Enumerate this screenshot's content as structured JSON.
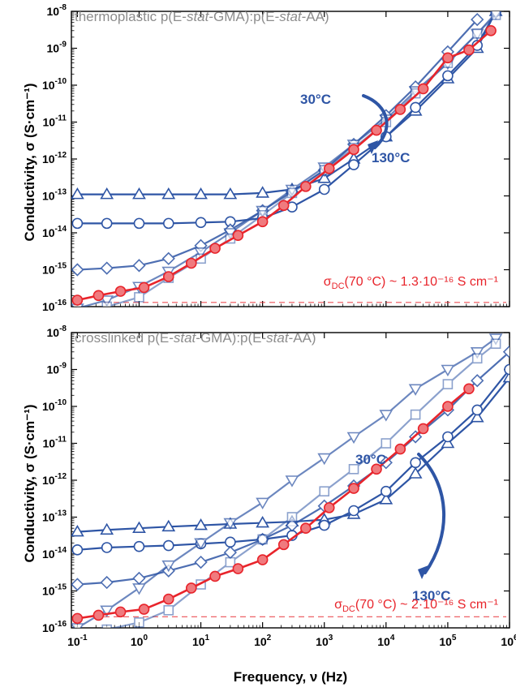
{
  "figure": {
    "xlabel": "Frequency, ν (Hz)",
    "ylabel": "Conductivity, σ (S·cm⁻¹)"
  },
  "chart_data": [
    {
      "type": "line",
      "title": "thermoplastic p(E-stat-GMA):p(E-stat-AA)",
      "title_parts": {
        "pre": "thermoplastic p(E-",
        "italic1": "stat",
        "mid": "-GMA):p(E-",
        "italic2": "stat",
        "post": "-AA)"
      },
      "xlabel": "Frequency, ν (Hz)",
      "ylabel": "Conductivity, σ (S·cm⁻¹)",
      "xscale": "log",
      "yscale": "log",
      "xlim": [
        0.08,
        1000000
      ],
      "ylim": [
        1e-16,
        1e-08
      ],
      "x_ticks": [
        "10⁻¹",
        "10⁰",
        "10¹",
        "10²",
        "10³",
        "10⁴",
        "10⁵",
        "10⁶"
      ],
      "y_ticks": [
        "10⁻⁸",
        "10⁻⁹",
        "10⁻¹⁰",
        "10⁻¹¹",
        "10⁻¹²",
        "10⁻¹³",
        "10⁻¹⁴",
        "10⁻¹⁵",
        "10⁻¹⁶"
      ],
      "annotations": {
        "hot": "130°C",
        "cold": "30°C"
      },
      "dc_label": {
        "prefix": "σ",
        "sub": "DC",
        "text": "(70 °C) ~ 1.3·10⁻¹⁶ S cm⁻¹",
        "value": 1.3e-16
      },
      "colors": {
        "series": "#2e55a5",
        "highlight": "#e8242b"
      },
      "series": [
        {
          "marker": "triangle-up",
          "alpha": 1.0,
          "x": [
            0.1,
            0.3,
            1,
            3,
            10,
            30,
            100,
            300,
            1000,
            3000,
            10000,
            30000,
            100000,
            300000,
            600000
          ],
          "y": [
            1.1e-13,
            1.1e-13,
            1.1e-13,
            1.1e-13,
            1.1e-13,
            1.1e-13,
            1.2e-13,
            1.5e-13,
            3e-13,
            1e-12,
            4e-12,
            2e-11,
            1.5e-10,
            1e-09,
            1e-08
          ]
        },
        {
          "marker": "circle",
          "alpha": 1.0,
          "x": [
            0.1,
            0.3,
            1,
            3,
            10,
            30,
            100,
            300,
            1000,
            3000,
            10000,
            30000,
            100000,
            300000,
            600000
          ],
          "y": [
            1.8e-14,
            1.8e-14,
            1.8e-14,
            1.8e-14,
            1.9e-14,
            2e-14,
            2.5e-14,
            5e-14,
            1.5e-13,
            7e-13,
            4e-12,
            2.5e-11,
            1.8e-10,
            1.2e-09,
            1e-08
          ]
        },
        {
          "marker": "diamond",
          "alpha": 0.85,
          "x": [
            0.1,
            0.3,
            1,
            3,
            10,
            30,
            100,
            300,
            1000,
            3000,
            10000,
            30000,
            100000,
            300000
          ],
          "y": [
            1e-15,
            1.1e-15,
            1.3e-15,
            2e-15,
            4.5e-15,
            1.2e-14,
            4e-14,
            1.3e-13,
            5e-13,
            2.5e-12,
            1.5e-11,
            9e-11,
            8e-10,
            6e-09
          ]
        },
        {
          "marker": "triangle-down",
          "alpha": 0.7,
          "x": [
            0.1,
            0.3,
            1,
            3,
            10,
            30,
            100,
            300,
            1000,
            3000,
            10000,
            30000,
            100000,
            300000,
            600000
          ],
          "y": [
            9e-17,
            1.5e-16,
            3.5e-16,
            9e-16,
            3e-15,
            1e-14,
            4e-14,
            1.5e-13,
            6e-13,
            2.5e-12,
            1.2e-11,
            7e-11,
            4e-10,
            2.5e-09,
            9e-09
          ]
        },
        {
          "marker": "square",
          "alpha": 0.55,
          "x": [
            0.1,
            0.3,
            1,
            3,
            10,
            30,
            100,
            300,
            1000,
            3000,
            10000,
            30000,
            100000,
            300000,
            600000
          ],
          "y": [
            5e-17,
            1e-16,
            1.8e-16,
            6e-16,
            2e-15,
            7e-15,
            3e-14,
            1.2e-13,
            5e-13,
            2e-12,
            1e-11,
            6e-11,
            4e-10,
            2.5e-09,
            8e-09
          ]
        },
        {
          "marker": "filled-circle",
          "alpha": 1.0,
          "highlight": true,
          "x": [
            0.1,
            0.22,
            0.5,
            1.2,
            3,
            7,
            17,
            40,
            100,
            220,
            500,
            1200,
            3000,
            7000,
            17000,
            40000,
            100000,
            220000,
            500000
          ],
          "y": [
            1.5e-16,
            2e-16,
            2.6e-16,
            3.3e-16,
            6.5e-16,
            1.5e-15,
            3.8e-15,
            8.5e-15,
            2e-14,
            5.5e-14,
            1.8e-13,
            5.5e-13,
            1.8e-12,
            6e-12,
            2.2e-11,
            8e-11,
            5.5e-10,
            9e-10,
            3e-09
          ]
        }
      ]
    },
    {
      "type": "line",
      "title": "crosslinked p(E-stat-GMA):p(E-stat-AA)",
      "title_parts": {
        "pre": "crosslinked p(E-",
        "italic1": "stat",
        "mid": "-GMA):p(E-",
        "italic2": "stat",
        "post": "-AA)"
      },
      "xlabel": "Frequency, ν (Hz)",
      "ylabel": "Conductivity, σ (S·cm⁻¹)",
      "xscale": "log",
      "yscale": "log",
      "xlim": [
        0.08,
        1000000
      ],
      "ylim": [
        1e-16,
        1e-08
      ],
      "x_ticks": [
        "10⁻¹",
        "10⁰",
        "10¹",
        "10²",
        "10³",
        "10⁴",
        "10⁵",
        "10⁶"
      ],
      "y_ticks": [
        "10⁻⁸",
        "10⁻⁹",
        "10⁻¹⁰",
        "10⁻¹¹",
        "10⁻¹²",
        "10⁻¹³",
        "10⁻¹⁴",
        "10⁻¹⁵",
        "10⁻¹⁶"
      ],
      "annotations": {
        "hot": "130°C",
        "cold": "30°C"
      },
      "dc_label": {
        "prefix": "σ",
        "sub": "DC",
        "text": "(70 °C) ~ 2·10⁻¹⁶ S cm⁻¹",
        "value": 2e-16
      },
      "colors": {
        "series": "#2e55a5",
        "highlight": "#e8242b"
      },
      "series": [
        {
          "marker": "triangle-up",
          "alpha": 1.0,
          "x": [
            0.1,
            0.3,
            1,
            3,
            10,
            30,
            100,
            300,
            1000,
            3000,
            10000,
            30000,
            100000,
            300000,
            1000000
          ],
          "y": [
            4e-14,
            4.5e-14,
            5e-14,
            5.5e-14,
            6e-14,
            6.5e-14,
            7e-14,
            7.5e-14,
            8.5e-14,
            1.2e-13,
            3e-13,
            1.5e-12,
            1e-11,
            5e-11,
            6e-10
          ]
        },
        {
          "marker": "circle",
          "alpha": 1.0,
          "x": [
            0.1,
            0.3,
            1,
            3,
            10,
            30,
            100,
            300,
            1000,
            3000,
            10000,
            30000,
            100000,
            300000,
            1000000
          ],
          "y": [
            1.3e-14,
            1.5e-14,
            1.6e-14,
            1.7e-14,
            1.9e-14,
            2.1e-14,
            2.5e-14,
            3.2e-14,
            6e-14,
            1.5e-13,
            5e-13,
            3e-12,
            1.5e-11,
            8e-11,
            1e-09
          ]
        },
        {
          "marker": "diamond",
          "alpha": 0.85,
          "x": [
            0.1,
            0.3,
            1,
            3,
            10,
            30,
            100,
            300,
            1000,
            3000,
            10000,
            30000,
            100000,
            300000,
            1000000
          ],
          "y": [
            1.5e-15,
            1.7e-15,
            2.2e-15,
            3.5e-15,
            6e-15,
            1.1e-14,
            2.5e-14,
            6e-14,
            2e-13,
            7e-13,
            3e-12,
            1.5e-11,
            8e-11,
            5e-10,
            3e-09
          ]
        },
        {
          "marker": "triangle-down",
          "alpha": 0.7,
          "x": [
            0.1,
            0.3,
            1,
            3,
            10,
            30,
            100,
            300,
            1000,
            3000,
            10000,
            30000,
            100000,
            300000,
            600000
          ],
          "y": [
            1e-16,
            3e-16,
            1.2e-15,
            5e-15,
            2e-14,
            7e-14,
            2.5e-13,
            1e-12,
            4e-12,
            1.5e-11,
            6e-11,
            3e-10,
            1e-09,
            3e-09,
            7e-09
          ]
        },
        {
          "marker": "square",
          "alpha": 0.55,
          "x": [
            0.1,
            0.3,
            1,
            3,
            10,
            30,
            100,
            300,
            1000,
            3000,
            10000,
            30000,
            100000,
            300000,
            600000
          ],
          "y": [
            5e-17,
            9e-17,
            1.4e-16,
            3e-16,
            1.5e-15,
            6e-15,
            2.5e-14,
            1e-13,
            5e-13,
            2e-12,
            1e-11,
            6e-11,
            4e-10,
            2e-09,
            5e-09
          ]
        },
        {
          "marker": "filled-circle",
          "alpha": 1.0,
          "highlight": true,
          "x": [
            0.1,
            0.22,
            0.5,
            1.2,
            3,
            7,
            17,
            40,
            100,
            220,
            500,
            1200,
            3000,
            7000,
            17000,
            40000,
            100000,
            220000
          ],
          "y": [
            1.8e-16,
            2.2e-16,
            2.7e-16,
            3.2e-16,
            6e-16,
            1.2e-15,
            2.5e-15,
            4e-15,
            7e-15,
            1.8e-14,
            5e-14,
            1.8e-13,
            6e-13,
            2e-12,
            7e-12,
            2.5e-11,
            1e-10,
            3e-10
          ]
        }
      ]
    }
  ]
}
